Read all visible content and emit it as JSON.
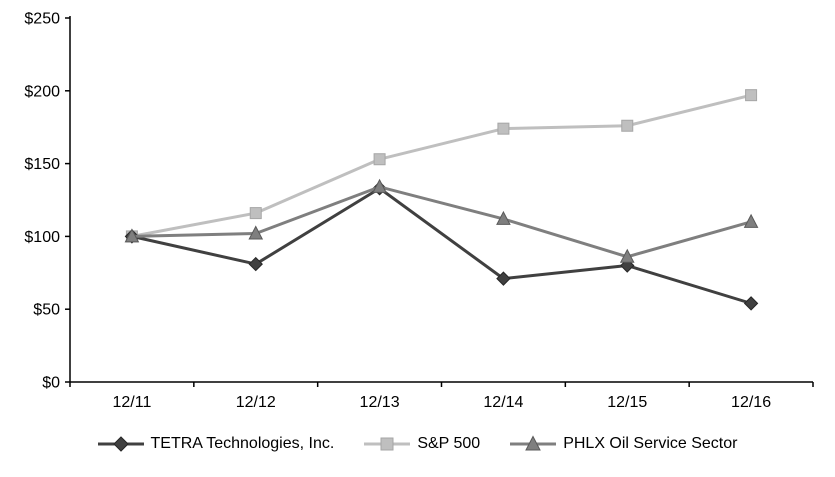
{
  "chart_data": {
    "type": "line",
    "categories": [
      "12/11",
      "12/12",
      "12/13",
      "12/14",
      "12/15",
      "12/16"
    ],
    "series": [
      {
        "name": "TETRA Technologies, Inc.",
        "marker": "diamond",
        "color": "#404040",
        "edge": "#262626",
        "values": [
          100,
          81,
          133,
          71,
          80,
          54
        ]
      },
      {
        "name": "S&P 500",
        "marker": "square",
        "color": "#bfbfbf",
        "edge": "#a6a6a6",
        "values": [
          100,
          116,
          153,
          174,
          176,
          197
        ]
      },
      {
        "name": "PHLX Oil Service Sector",
        "marker": "triangle",
        "color": "#7f7f7f",
        "edge": "#595959",
        "values": [
          100,
          102,
          134,
          112,
          86,
          110
        ]
      }
    ],
    "ylim": [
      0,
      250
    ],
    "yticks": [
      {
        "value": 0,
        "label": "$0"
      },
      {
        "value": 50,
        "label": "$50"
      },
      {
        "value": 100,
        "label": "$100"
      },
      {
        "value": 150,
        "label": "$150"
      },
      {
        "value": 200,
        "label": "$200"
      },
      {
        "value": 250,
        "label": "$250"
      }
    ],
    "grid": false,
    "legend_position": "bottom",
    "axis_color": "#000000",
    "draw_order": [
      1,
      0,
      2
    ]
  }
}
